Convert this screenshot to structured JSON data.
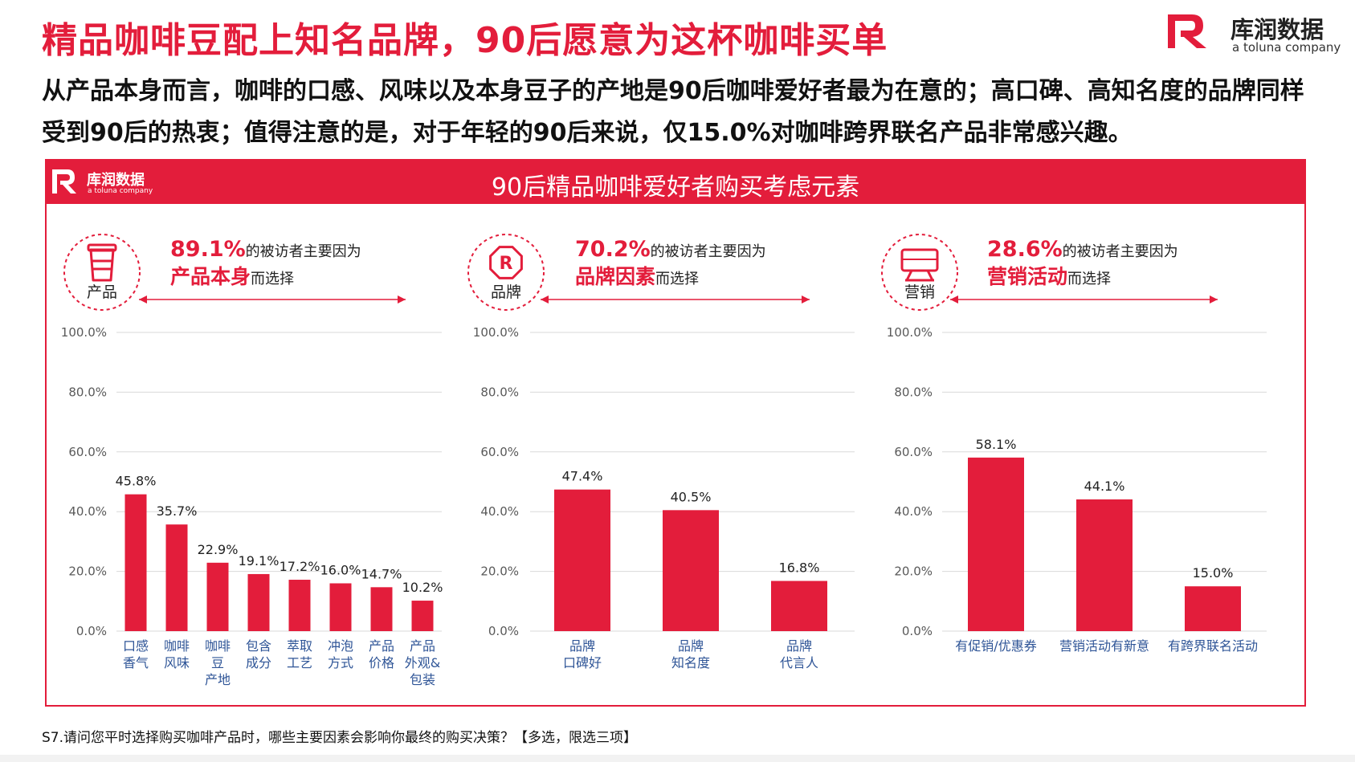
{
  "title": "精品咖啡豆配上知名品牌，90后愿意为这杯咖啡买单",
  "logo": {
    "name": "库润数据",
    "sub": "a toluna company"
  },
  "subtitle": "从产品本身而言，咖啡的口感、风味以及本身豆子的产地是90后咖啡爱好者最为在意的；高口碑、高知名度的品牌同样受到90后的热衷；值得注意的是，对于年轻的90后来说，仅15.0%对咖啡跨界联名产品非常感兴趣。",
  "panel": {
    "banner_title": "90后精品咖啡爱好者购买考虑元素",
    "banner_logo": {
      "name": "库润数据",
      "sub": "a toluna company"
    }
  },
  "colors": {
    "accent": "#e31d3b",
    "grid": "#d9d9d9",
    "axis_text": "#595959",
    "label_blue": "#2f5597"
  },
  "footnote": "S7.请问您平时选择购买咖啡产品时，哪些主要因素会影响你最终的购买决策？【多选，限选三项】",
  "chart_data": [
    {
      "type": "bar",
      "icon": "coffee-cup-icon",
      "icon_label": "产品",
      "percent": "89.1%",
      "desc": "的被访者主要因为",
      "reason": "产品本身",
      "suffix": "而选择",
      "ylim": [
        0,
        100
      ],
      "yticks": [
        "0.0%",
        "20.0%",
        "40.0%",
        "60.0%",
        "80.0%",
        "100.0%"
      ],
      "categories": [
        [
          "口感",
          "香气"
        ],
        [
          "咖啡",
          "风味"
        ],
        [
          "咖啡",
          "豆",
          "产地"
        ],
        [
          "包含",
          "成分"
        ],
        [
          "萃取",
          "工艺"
        ],
        [
          "冲泡",
          "方式"
        ],
        [
          "产品",
          "价格"
        ],
        [
          "产品",
          "外观&",
          "包装"
        ]
      ],
      "values": [
        45.8,
        35.7,
        22.9,
        19.1,
        17.2,
        16.0,
        14.7,
        10.2
      ],
      "value_labels": [
        "45.8%",
        "35.7%",
        "22.9%",
        "19.1%",
        "17.2%",
        "16.0%",
        "14.7%",
        "10.2%"
      ]
    },
    {
      "type": "bar",
      "icon": "registered-brand-icon",
      "icon_label": "品牌",
      "percent": "70.2%",
      "desc": "的被访者主要因为",
      "reason": "品牌因素",
      "suffix": "而选择",
      "ylim": [
        0,
        100
      ],
      "yticks": [
        "0.0%",
        "20.0%",
        "40.0%",
        "60.0%",
        "80.0%",
        "100.0%"
      ],
      "categories": [
        [
          "品牌",
          "口碑好"
        ],
        [
          "品牌",
          "知名度"
        ],
        [
          "品牌",
          "代言人"
        ]
      ],
      "values": [
        47.4,
        40.5,
        16.8
      ],
      "value_labels": [
        "47.4%",
        "40.5%",
        "16.8%"
      ]
    },
    {
      "type": "bar",
      "icon": "promotion-sign-icon",
      "icon_label": "营销",
      "percent": "28.6%",
      "desc": "的被访者主要因为",
      "reason": "营销活动",
      "suffix": "而选择",
      "ylim": [
        0,
        100
      ],
      "yticks": [
        "0.0%",
        "20.0%",
        "40.0%",
        "60.0%",
        "80.0%",
        "100.0%"
      ],
      "categories": [
        [
          "有促销/优惠券"
        ],
        [
          "营销活动有新意"
        ],
        [
          "有跨界联名活动"
        ]
      ],
      "values": [
        58.1,
        44.1,
        15.0
      ],
      "value_labels": [
        "58.1%",
        "44.1%",
        "15.0%"
      ]
    }
  ]
}
